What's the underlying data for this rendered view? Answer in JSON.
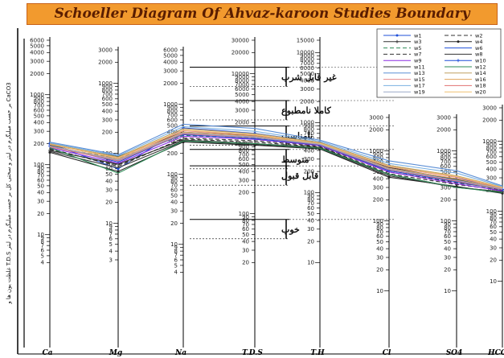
{
  "title": "Schoeller Diagram Of Ahvaz-karoon Studies Boundary",
  "chart_data": {
    "type": "line",
    "title": "Schoeller Diagram Of Ahvaz-karoon Studies Boundary",
    "ylabel": "غلظت یون ها و T.D.S بر حسب میلیگرم در لیتر و سختی کل بر حسب میلیگرم در لیتر CaCO3",
    "categories": [
      "Ca",
      "Mg",
      "Na",
      "T.D.S",
      "T.H",
      "Cl",
      "SO4",
      "HCO3"
    ],
    "axes": [
      {
        "ion": "Ca",
        "min": 4,
        "max": 6000,
        "ticks": [
          6000,
          5000,
          4000,
          3000,
          2000,
          1000,
          900,
          800,
          700,
          600,
          500,
          400,
          300,
          200,
          100,
          90,
          80,
          70,
          60,
          50,
          40,
          30,
          20,
          10,
          9,
          8,
          7,
          6,
          5,
          4
        ]
      },
      {
        "ion": "Mg",
        "min": 3,
        "max": 3000,
        "ticks": [
          3000,
          2000,
          1000,
          900,
          800,
          700,
          600,
          500,
          400,
          300,
          200,
          100,
          90,
          80,
          70,
          60,
          50,
          40,
          30,
          20,
          10,
          9,
          8,
          7,
          6,
          5,
          4,
          3
        ]
      },
      {
        "ion": "Na",
        "min": 4,
        "max": 6000,
        "ticks": [
          6000,
          5000,
          4000,
          3000,
          2000,
          1000,
          900,
          800,
          700,
          600,
          500,
          400,
          300,
          200,
          100,
          90,
          80,
          70,
          60,
          50,
          40,
          30,
          20,
          10,
          9,
          8,
          7,
          6,
          5,
          4
        ]
      },
      {
        "ion": "T.D.S",
        "min": 20,
        "max": 30000,
        "ticks": [
          30000,
          20000,
          10000,
          9000,
          8000,
          7000,
          6000,
          5000,
          4000,
          3000,
          2000,
          1000,
          900,
          800,
          700,
          600,
          500,
          400,
          300,
          200,
          100,
          90,
          80,
          70,
          60,
          50,
          40,
          30,
          20
        ]
      },
      {
        "ion": "T.H",
        "min": 10,
        "max": 15000,
        "ticks": [
          15000,
          10000,
          9000,
          8000,
          7000,
          6000,
          5000,
          4000,
          3000,
          2000,
          1000,
          900,
          800,
          700,
          600,
          500,
          400,
          300,
          200,
          100,
          90,
          80,
          70,
          60,
          50,
          40,
          30,
          20,
          10
        ]
      },
      {
        "ion": "Cl",
        "min": 10,
        "max": 3000,
        "ticks": [
          3000,
          2000,
          1000,
          900,
          800,
          700,
          600,
          500,
          400,
          300,
          200,
          100,
          90,
          80,
          70,
          60,
          50,
          40,
          30,
          20,
          10
        ]
      },
      {
        "ion": "SO4",
        "min": 10,
        "max": 3000,
        "ticks": [
          3000,
          2000,
          1000,
          900,
          800,
          700,
          600,
          500,
          400,
          300,
          200,
          100,
          90,
          80,
          70,
          60,
          50,
          40,
          30,
          20,
          10
        ]
      },
      {
        "ion": "HCO3",
        "min": 10,
        "max": 3000,
        "ticks": [
          3000,
          2000,
          1000,
          900,
          800,
          700,
          600,
          500,
          400,
          300,
          200,
          100,
          90,
          80,
          70,
          60,
          50,
          40,
          30,
          20,
          10
        ]
      }
    ],
    "quality_zones": [
      {
        "label": "غیر قابل شرب",
        "tds": 9000
      },
      {
        "label": "کاملا نامطبوع",
        "tds": 3000
      },
      {
        "label": "نامناسب",
        "tds": 1300
      },
      {
        "label": "متوسط",
        "tds": 600
      },
      {
        "label": "قابل قبول",
        "tds": 350
      },
      {
        "label": "خوب",
        "tds": 60
      }
    ],
    "series": [
      {
        "name": "w1",
        "color": "#1f4fd8",
        "dash": "",
        "marker": "dot",
        "values": [
          200,
          60,
          460,
          1400,
          520,
          620,
          420,
          200
        ]
      },
      {
        "name": "w2",
        "color": "#333333",
        "dash": "5,3",
        "marker": "",
        "values": [
          170,
          65,
          330,
          1100,
          460,
          500,
          350,
          210
        ]
      },
      {
        "name": "w3",
        "color": "#333333",
        "dash": "",
        "marker": "plus",
        "values": [
          160,
          70,
          310,
          1000,
          440,
          460,
          300,
          190
        ]
      },
      {
        "name": "w4",
        "color": "#222222",
        "dash": "",
        "marker": "dot",
        "values": [
          150,
          55,
          290,
          950,
          420,
          420,
          310,
          180
        ]
      },
      {
        "name": "w5",
        "color": "#2e8b57",
        "dash": "5,3",
        "marker": "",
        "values": [
          180,
          85,
          360,
          1200,
          500,
          520,
          360,
          200
        ]
      },
      {
        "name": "w6",
        "color": "#1f4fd8",
        "dash": "",
        "marker": "",
        "values": [
          190,
          75,
          380,
          1250,
          490,
          560,
          380,
          210
        ]
      },
      {
        "name": "w7",
        "color": "#333333",
        "dash": "5,3",
        "marker": "",
        "values": [
          165,
          68,
          320,
          1050,
          450,
          470,
          330,
          200
        ]
      },
      {
        "name": "w8",
        "color": "#333333",
        "dash": "",
        "marker": "",
        "values": [
          155,
          62,
          300,
          980,
          430,
          440,
          300,
          190
        ]
      },
      {
        "name": "w9",
        "color": "#8a2be2",
        "dash": "",
        "marker": "",
        "values": [
          175,
          72,
          350,
          1150,
          470,
          500,
          340,
          195
        ]
      },
      {
        "name": "w10",
        "color": "#1f4fd8",
        "dash": "",
        "marker": "plus",
        "values": [
          185,
          80,
          370,
          1180,
          480,
          520,
          360,
          205
        ]
      },
      {
        "name": "w11",
        "color": "#333333",
        "dash": "",
        "marker": "",
        "values": [
          190,
          90,
          400,
          1300,
          510,
          580,
          390,
          215
        ]
      },
      {
        "name": "w12",
        "color": "#2e8b57",
        "dash": "",
        "marker": "",
        "values": [
          175,
          52,
          300,
          1000,
          430,
          460,
          300,
          185
        ]
      },
      {
        "name": "w13",
        "color": "#5c8fd6",
        "dash": "",
        "marker": "",
        "values": [
          210,
          95,
          520,
          1650,
          560,
          720,
          520,
          230
        ]
      },
      {
        "name": "w14",
        "color": "#c0a060",
        "dash": "",
        "marker": "",
        "values": [
          200,
          88,
          450,
          1380,
          520,
          620,
          440,
          220
        ]
      },
      {
        "name": "w15",
        "color": "#e58a8a",
        "dash": "",
        "marker": "",
        "values": [
          195,
          85,
          420,
          1320,
          500,
          590,
          420,
          215
        ]
      },
      {
        "name": "w16",
        "color": "#e0a45a",
        "dash": "",
        "marker": "",
        "values": [
          185,
          82,
          400,
          1280,
          495,
          560,
          400,
          210
        ]
      },
      {
        "name": "w17",
        "color": "#7ab0e0",
        "dash": "",
        "marker": "",
        "values": [
          205,
          92,
          480,
          1500,
          540,
          660,
          480,
          225
        ]
      },
      {
        "name": "w18",
        "color": "#e07070",
        "dash": "",
        "marker": "",
        "values": [
          180,
          78,
          380,
          1220,
          485,
          540,
          370,
          205
        ]
      },
      {
        "name": "w19",
        "color": "#9aa8c8",
        "dash": "",
        "marker": "",
        "values": [
          185,
          80,
          390,
          1240,
          490,
          550,
          380,
          208
        ]
      },
      {
        "name": "w20",
        "color": "#f0c070",
        "dash": "",
        "marker": "",
        "values": [
          195,
          86,
          430,
          1340,
          505,
          600,
          430,
          218
        ]
      }
    ]
  }
}
